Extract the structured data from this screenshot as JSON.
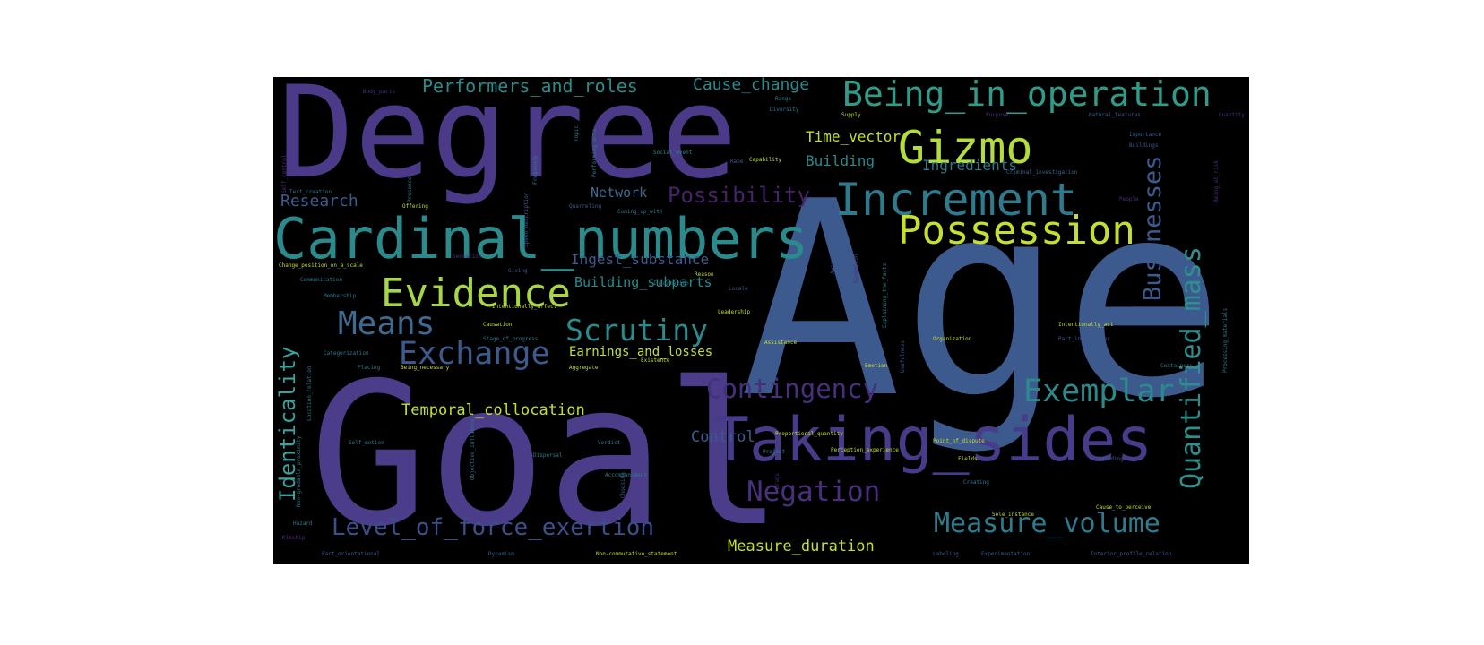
{
  "colors": {
    "background": "#000000",
    "page": "#ffffff"
  },
  "words": {
    "age": "Age",
    "goal": "Goal",
    "degree": "Degree",
    "taking_sides": "Taking_sides",
    "cardinal_numbers": "Cardinal_numbers",
    "increment": "Increment",
    "gizmo": "Gizmo",
    "possession": "Possession",
    "being_in_operation": "Being_in_operation",
    "evidence": "Evidence",
    "means": "Means",
    "scrutiny": "Scrutiny",
    "exchange": "Exchange",
    "exemplar": "Exemplar",
    "contingency": "Contingency",
    "negation": "Negation",
    "measure_volume": "Measure_volume",
    "level_of_force_exertion": "Level_of_force_exertion",
    "measure_duration": "Measure_duration",
    "temporal_collocation": "Temporal_collocation",
    "identicality": "Identicality",
    "quantified_mass": "Quantified_mass",
    "businesses": "Businesses",
    "possibility": "Possibility",
    "performers_and_roles": "Performers_and_roles",
    "cause_change": "Cause_change",
    "time_vector": "Time_vector",
    "building": "Building",
    "ingredients": "Ingredients",
    "research": "Research",
    "network": "Network",
    "ingest_substance": "Ingest_substance",
    "building_subparts": "Building_subparts",
    "earnings_and_losses": "Earnings_and_losses",
    "control": "Control",
    "body_parts": "Body_parts",
    "diversity": "Diversity",
    "supply": "Supply",
    "purpose": "Purpose",
    "natural_features": "Natural_features",
    "quantity": "Quantity",
    "importance": "Importance",
    "buildings": "Buildings",
    "social_event": "Social_event",
    "capability": "Capability",
    "criminal_investigation": "Criminal_investigation",
    "text_creation": "Text_creation",
    "offering": "Offering",
    "quarreling": "Quarreling",
    "coming_up_with": "Coming_up_with",
    "people": "People",
    "change_position_on_a_scale": "Change_position_on_a_scale",
    "giving": "Giving",
    "information": "Information",
    "locale": "Locale",
    "communication": "Communication",
    "membership": "Membership",
    "intentionally_affect": "Intentionally_affect",
    "leadership": "Leadership",
    "causation": "Causation",
    "stage_of_progress": "Stage_of_progress",
    "categorization": "Categorization",
    "placing": "Placing",
    "being_necessary": "Being_necessary",
    "aggregate": "Aggregate",
    "existence": "Existence",
    "assistance": "Assistance",
    "intentionally_act": "Intentionally_act",
    "organization": "Organization",
    "part_inner_outer": "Part_inner_outer",
    "proportional_quantity": "Proportional_quantity",
    "point_of_dispute": "Point_of_dispute",
    "self_motion": "Self_motion",
    "verdict": "Verdict",
    "dispersal": "Dispersal",
    "project": "Project",
    "perception_experience": "Perception_experience",
    "fields": "Fields",
    "decoding": "Decoding",
    "creating": "Creating",
    "cause_to_perceive": "Cause_to_perceive",
    "sole_instance": "Sole_instance",
    "part_orientational": "Part_orientational",
    "dynamism": "Dynamism",
    "non_commutative_statement": "Non-commutative_statement",
    "labeling": "Labeling",
    "experimentation": "Experimentation",
    "interior_profile_relation": "Interior_profile_relation",
    "hazard": "Hazard",
    "kinship": "Kinship",
    "accompaniment": "Accompaniment",
    "choosing": "Choosing",
    "speed_description": "Speed_description",
    "frequency": "Frequency",
    "performing_arts": "Performing_arts",
    "topic": "Topic",
    "presence": "Presence",
    "rape": "Rape",
    "sensation": "Sensation",
    "awareness": "Awareness",
    "dimension": "Dimension",
    "explaining_the_facts": "Explaining_the_facts",
    "usefulness": "Usefulness",
    "processing_materials": "Processing_materials",
    "range": "Range",
    "location_relation": "Location_relation",
    "non_gradable_proximity": "Non-gradable_proximity",
    "objective_influence": "Objective_influence",
    "reason": "Reason",
    "containers": "Containers",
    "emotion": "Emotion",
    "drugs": "Drugs",
    "being_at_risk": "Being_at_risk",
    "self_control": "Self_control"
  }
}
